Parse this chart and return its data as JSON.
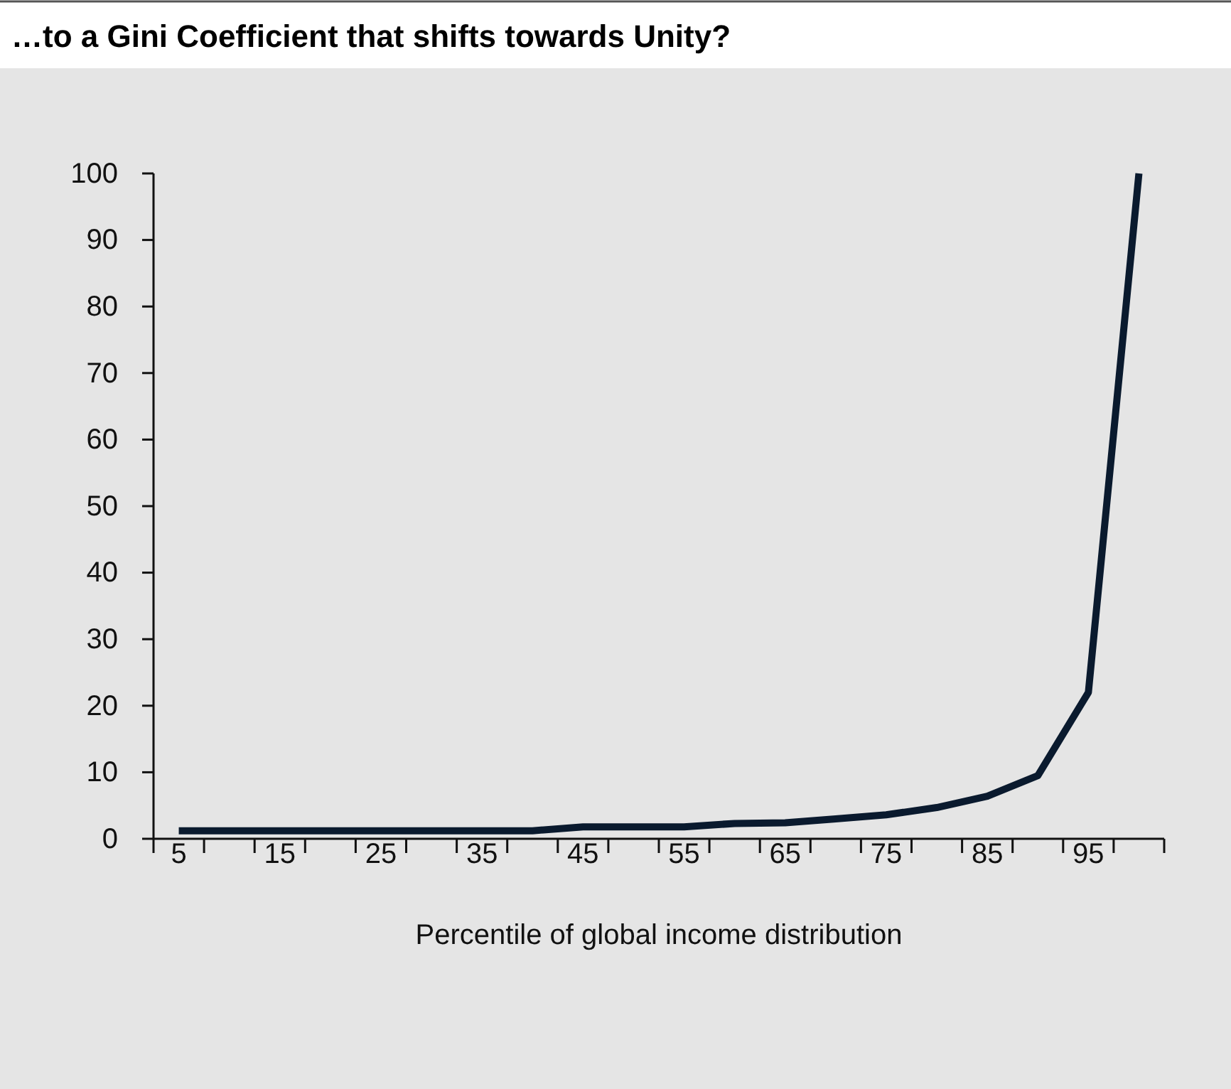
{
  "chart_data": {
    "type": "line",
    "title": "…to a Gini Coefficient that shifts towards Unity?",
    "xlabel": "Percentile of global income distribution",
    "categories": [
      "5",
      null,
      "15",
      null,
      "25",
      null,
      "35",
      null,
      "45",
      null,
      "55",
      null,
      "65",
      null,
      "75",
      null,
      "85",
      null,
      "95",
      null
    ],
    "series": [
      {
        "color": "#0a1a2e",
        "values": [
          1.2,
          1.2,
          1.2,
          1.2,
          1.2,
          1.2,
          1.2,
          1.2,
          1.8,
          1.8,
          1.8,
          2.3,
          2.4,
          3,
          3.6,
          4.7,
          6.4,
          9.5,
          22,
          100
        ]
      }
    ],
    "ylim": [
      0,
      100
    ],
    "yticks": [
      0,
      10,
      20,
      30,
      40,
      50,
      60,
      70,
      80,
      90,
      100
    ],
    "grid": false,
    "marker": "none",
    "line_style": "solid"
  }
}
